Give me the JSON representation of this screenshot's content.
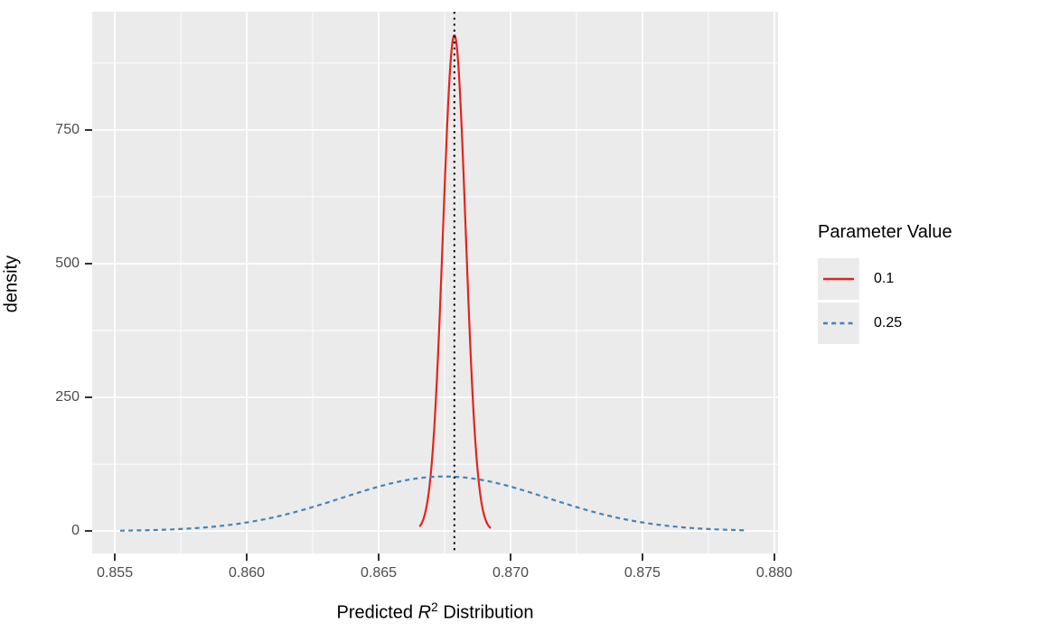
{
  "figure": {
    "background": "#FFFFFF",
    "panel_background": "#EBEBEB",
    "grid_color": "#FFFFFF",
    "tick_mark_color": "#333333",
    "tick_label_color": "#4D4D4D",
    "axis_title_color": "#000000"
  },
  "chart_data": {
    "type": "line",
    "subtype": "density",
    "title": "",
    "xlabel": {
      "prefix": "Predicted ",
      "var": "R",
      "sup": "2",
      "suffix": " Distribution"
    },
    "ylabel": "density",
    "xlim": [
      0.85414,
      0.88014
    ],
    "ylim": [
      -42,
      971
    ],
    "grid": true,
    "x_ticks": {
      "values": [
        0.855,
        0.86,
        0.865,
        0.87,
        0.875,
        0.88
      ],
      "labels": [
        "0.855",
        "0.860",
        "0.865",
        "0.870",
        "0.875",
        "0.880"
      ]
    },
    "y_ticks": {
      "values": [
        0,
        250,
        500,
        750
      ],
      "labels": [
        "0",
        "250",
        "500",
        "750"
      ]
    },
    "x_minor": [
      0.8575,
      0.8625,
      0.8675,
      0.8725,
      0.8775
    ],
    "y_minor": [
      125,
      375,
      625,
      875
    ],
    "vline": {
      "x": 0.86787,
      "color": "#000000",
      "linestyle": "dotted"
    },
    "legend": {
      "title": "Parameter Value",
      "position": "right"
    },
    "series": [
      {
        "name": "0.1",
        "color": "#E3241E",
        "linestyle": "solid",
        "distribution": "normal",
        "mean": 0.86787,
        "sd": 0.00043,
        "peak_density": 927,
        "x_range": [
          0.86655,
          0.86925
        ]
      },
      {
        "name": "0.25",
        "color": "#4682B4",
        "linestyle": "dashed",
        "distribution": "normal",
        "mean": 0.8675,
        "sd": 0.0039,
        "peak_density": 102,
        "x_range": [
          0.8552,
          0.8789
        ]
      }
    ]
  }
}
